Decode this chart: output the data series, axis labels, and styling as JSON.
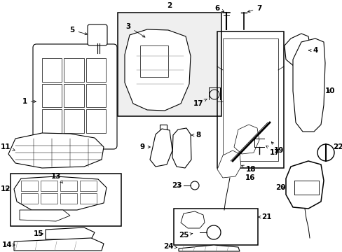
{
  "background_color": "#ffffff",
  "fig_w": 4.89,
  "fig_h": 3.6,
  "dpi": 100
}
